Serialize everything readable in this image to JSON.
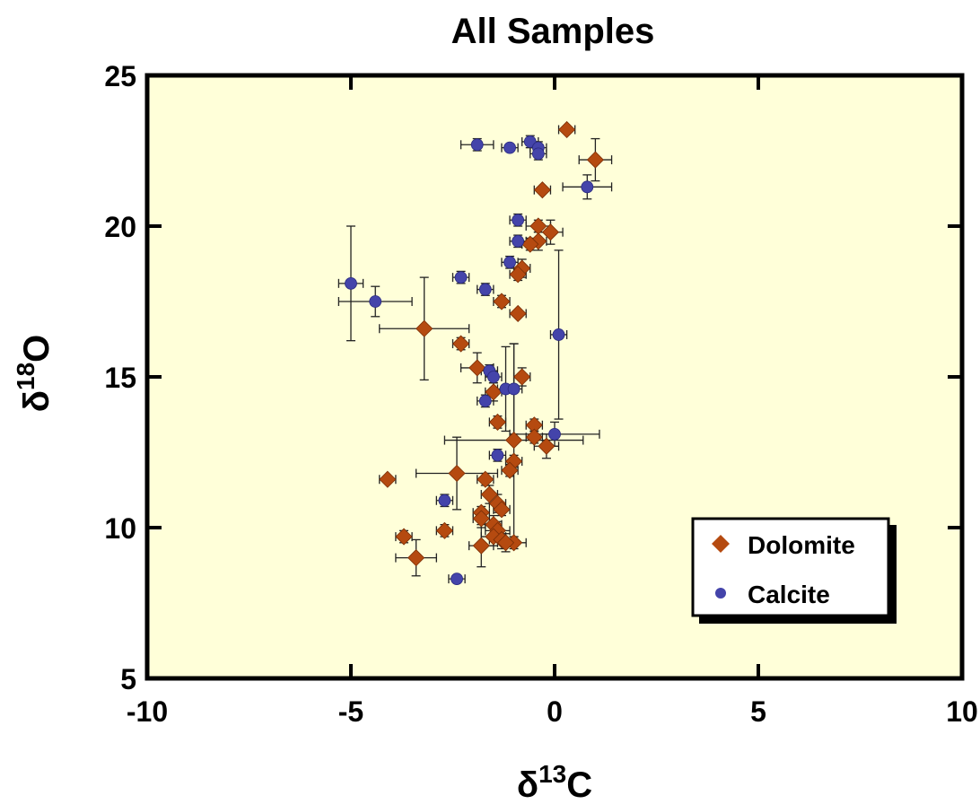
{
  "chart_data": {
    "type": "scatter",
    "title": "All Samples",
    "xlabel": {
      "prefix": "δ",
      "sup": "13",
      "main": "C"
    },
    "ylabel": {
      "prefix": "δ",
      "sup": "18",
      "main": "O"
    },
    "xlim": [
      -10,
      10
    ],
    "ylim": [
      5,
      25
    ],
    "xticks": [
      -10,
      -5,
      0,
      5,
      10
    ],
    "yticks": [
      5,
      10,
      15,
      20,
      25
    ],
    "background": "#ffffd9",
    "grid": false,
    "legend": {
      "position": "bottom-right",
      "entries": [
        "Dolomite",
        "Calcite"
      ]
    },
    "series": [
      {
        "name": "Dolomite",
        "marker": "diamond",
        "color": "#b54a10",
        "points": [
          {
            "x": 0.3,
            "y": 23.2,
            "xerr": 0.2,
            "yerr": 0.1
          },
          {
            "x": 1.0,
            "y": 22.2,
            "xerr": 0.4,
            "yerr": 0.7
          },
          {
            "x": -0.3,
            "y": 21.2,
            "xerr": 0.2,
            "yerr": 0.1
          },
          {
            "x": -0.4,
            "y": 20.0,
            "xerr": 0.3,
            "yerr": 0.2
          },
          {
            "x": -0.1,
            "y": 19.8,
            "xerr": 0.3,
            "yerr": 0.4
          },
          {
            "x": -0.4,
            "y": 19.5,
            "xerr": 0.2,
            "yerr": 0.3
          },
          {
            "x": -0.6,
            "y": 19.4,
            "xerr": 0.2,
            "yerr": 0.2
          },
          {
            "x": -0.8,
            "y": 18.6,
            "xerr": 0.2,
            "yerr": 0.3
          },
          {
            "x": -0.9,
            "y": 18.4,
            "xerr": 0.2,
            "yerr": 0.2
          },
          {
            "x": -1.3,
            "y": 17.5,
            "xerr": 0.2,
            "yerr": 0.2
          },
          {
            "x": -0.9,
            "y": 17.1,
            "xerr": 0.2,
            "yerr": 0.1
          },
          {
            "x": -3.2,
            "y": 16.6,
            "xerr": 1.1,
            "yerr": 1.7
          },
          {
            "x": -2.3,
            "y": 16.1,
            "xerr": 0.2,
            "yerr": 0.2
          },
          {
            "x": -1.9,
            "y": 15.3,
            "xerr": 0.4,
            "yerr": 0.5
          },
          {
            "x": -0.8,
            "y": 15.0,
            "xerr": 0.2,
            "yerr": 0.3
          },
          {
            "x": -1.5,
            "y": 14.5,
            "xerr": 0.2,
            "yerr": 0.3
          },
          {
            "x": -1.4,
            "y": 13.5,
            "xerr": 0.2,
            "yerr": 0.2
          },
          {
            "x": -0.5,
            "y": 13.4,
            "xerr": 0.2,
            "yerr": 0.2
          },
          {
            "x": -0.5,
            "y": 13.0,
            "xerr": 0.2,
            "yerr": 0.2
          },
          {
            "x": -1.0,
            "y": 12.9,
            "xerr": 1.7,
            "yerr": 3.2
          },
          {
            "x": -0.2,
            "y": 12.7,
            "xerr": 0.3,
            "yerr": 0.4
          },
          {
            "x": -1.0,
            "y": 12.2,
            "xerr": 0.2,
            "yerr": 0.2
          },
          {
            "x": -1.1,
            "y": 11.9,
            "xerr": 0.2,
            "yerr": 0.2
          },
          {
            "x": -2.4,
            "y": 11.8,
            "xerr": 1.0,
            "yerr": 1.2
          },
          {
            "x": -4.1,
            "y": 11.6,
            "xerr": 0.2,
            "yerr": 0.1
          },
          {
            "x": -1.7,
            "y": 11.6,
            "xerr": 0.2,
            "yerr": 0.2
          },
          {
            "x": -1.6,
            "y": 11.1,
            "xerr": 0.2,
            "yerr": 0.3
          },
          {
            "x": -1.4,
            "y": 10.8,
            "xerr": 0.2,
            "yerr": 0.3
          },
          {
            "x": -1.3,
            "y": 10.6,
            "xerr": 0.2,
            "yerr": 0.2
          },
          {
            "x": -1.8,
            "y": 10.5,
            "xerr": 0.2,
            "yerr": 0.2
          },
          {
            "x": -1.8,
            "y": 10.3,
            "xerr": 0.2,
            "yerr": 0.3
          },
          {
            "x": -1.5,
            "y": 10.1,
            "xerr": 0.2,
            "yerr": 0.3
          },
          {
            "x": -2.7,
            "y": 9.9,
            "xerr": 0.2,
            "yerr": 0.2
          },
          {
            "x": -1.4,
            "y": 9.9,
            "xerr": 0.3,
            "yerr": 0.3
          },
          {
            "x": -3.7,
            "y": 9.7,
            "xerr": 0.2,
            "yerr": 0.2
          },
          {
            "x": -1.5,
            "y": 9.7,
            "xerr": 0.3,
            "yerr": 0.3
          },
          {
            "x": -1.3,
            "y": 9.6,
            "xerr": 0.3,
            "yerr": 0.3
          },
          {
            "x": -1.0,
            "y": 9.5,
            "xerr": 0.3,
            "yerr": 0.2
          },
          {
            "x": -1.2,
            "y": 9.5,
            "xerr": 0.2,
            "yerr": 0.3
          },
          {
            "x": -1.8,
            "y": 9.4,
            "xerr": 0.3,
            "yerr": 0.7
          },
          {
            "x": -3.4,
            "y": 9.0,
            "xerr": 0.5,
            "yerr": 0.6
          }
        ]
      },
      {
        "name": "Calcite",
        "marker": "circle",
        "color": "#4444aa",
        "points": [
          {
            "x": -1.9,
            "y": 22.7,
            "xerr": 0.4,
            "yerr": 0.2
          },
          {
            "x": -0.6,
            "y": 22.8,
            "xerr": 0.2,
            "yerr": 0.2
          },
          {
            "x": -0.4,
            "y": 22.6,
            "xerr": 0.2,
            "yerr": 0.2
          },
          {
            "x": -1.1,
            "y": 22.6,
            "xerr": 0.2,
            "yerr": 0.1
          },
          {
            "x": -0.4,
            "y": 22.4,
            "xerr": 0.2,
            "yerr": 0.2
          },
          {
            "x": 0.8,
            "y": 21.3,
            "xerr": 0.6,
            "yerr": 0.4
          },
          {
            "x": -0.9,
            "y": 20.2,
            "xerr": 0.2,
            "yerr": 0.2
          },
          {
            "x": -0.9,
            "y": 19.5,
            "xerr": 0.2,
            "yerr": 0.2
          },
          {
            "x": -1.1,
            "y": 18.8,
            "xerr": 0.2,
            "yerr": 0.2
          },
          {
            "x": -2.3,
            "y": 18.3,
            "xerr": 0.2,
            "yerr": 0.2
          },
          {
            "x": -5.0,
            "y": 18.1,
            "xerr": 0.3,
            "yerr": 1.9
          },
          {
            "x": -1.7,
            "y": 17.9,
            "xerr": 0.2,
            "yerr": 0.2
          },
          {
            "x": -4.4,
            "y": 17.5,
            "xerr": 0.9,
            "yerr": 0.5
          },
          {
            "x": 0.1,
            "y": 16.4,
            "xerr": 0.2,
            "yerr": 2.8
          },
          {
            "x": -1.6,
            "y": 15.2,
            "xerr": 0.2,
            "yerr": 0.2
          },
          {
            "x": -1.5,
            "y": 15.0,
            "xerr": 0.2,
            "yerr": 0.2
          },
          {
            "x": -1.2,
            "y": 14.6,
            "xerr": 0.2,
            "yerr": 1.4
          },
          {
            "x": -1.0,
            "y": 14.6,
            "xerr": 0.2,
            "yerr": 1.5
          },
          {
            "x": -1.7,
            "y": 14.2,
            "xerr": 0.2,
            "yerr": 0.2
          },
          {
            "x": 0.0,
            "y": 13.1,
            "xerr": 1.1,
            "yerr": 0.4
          },
          {
            "x": -1.4,
            "y": 12.4,
            "xerr": 0.2,
            "yerr": 0.2
          },
          {
            "x": -2.7,
            "y": 10.9,
            "xerr": 0.2,
            "yerr": 0.2
          },
          {
            "x": -2.4,
            "y": 8.3,
            "xerr": 0.2,
            "yerr": 0.1
          }
        ]
      }
    ]
  }
}
